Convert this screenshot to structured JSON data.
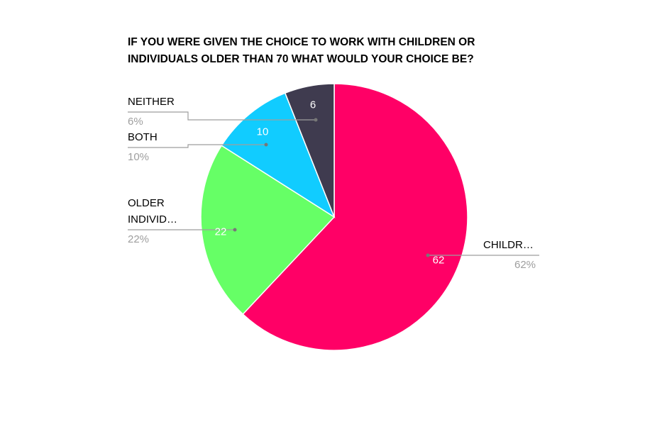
{
  "chart_data": {
    "type": "pie",
    "title": "IF YOU WERE GIVEN THE CHOICE TO WORK WITH CHILDREN OR INDIVIDUALS OLDER THAN 70 WHAT WOULD YOUR CHOICE BE?",
    "title_lines": [
      "IF YOU WERE GIVEN THE CHOICE TO WORK WITH CHILDREN OR",
      "INDIVIDUALS OLDER THAN 70 WHAT WOULD YOUR CHOICE BE?"
    ],
    "start": "top, clockwise",
    "slices": [
      {
        "label": "CHILDR…",
        "label_lines": [
          "CHILDR…"
        ],
        "value": 62,
        "percent": "62%",
        "color": "#ff0066"
      },
      {
        "label": "OLDER INDIVID…",
        "label_lines": [
          "OLDER",
          "INDIVID…"
        ],
        "value": 22,
        "percent": "22%",
        "color": "#66ff66"
      },
      {
        "label": "BOTH",
        "label_lines": [
          "BOTH"
        ],
        "value": 10,
        "percent": "10%",
        "color": "#11ccff"
      },
      {
        "label": "NEITHER",
        "label_lines": [
          "NEITHER"
        ],
        "value": 6,
        "percent": "6%",
        "color": "#3f3b4f"
      }
    ],
    "legend": "none (callout labels)"
  }
}
